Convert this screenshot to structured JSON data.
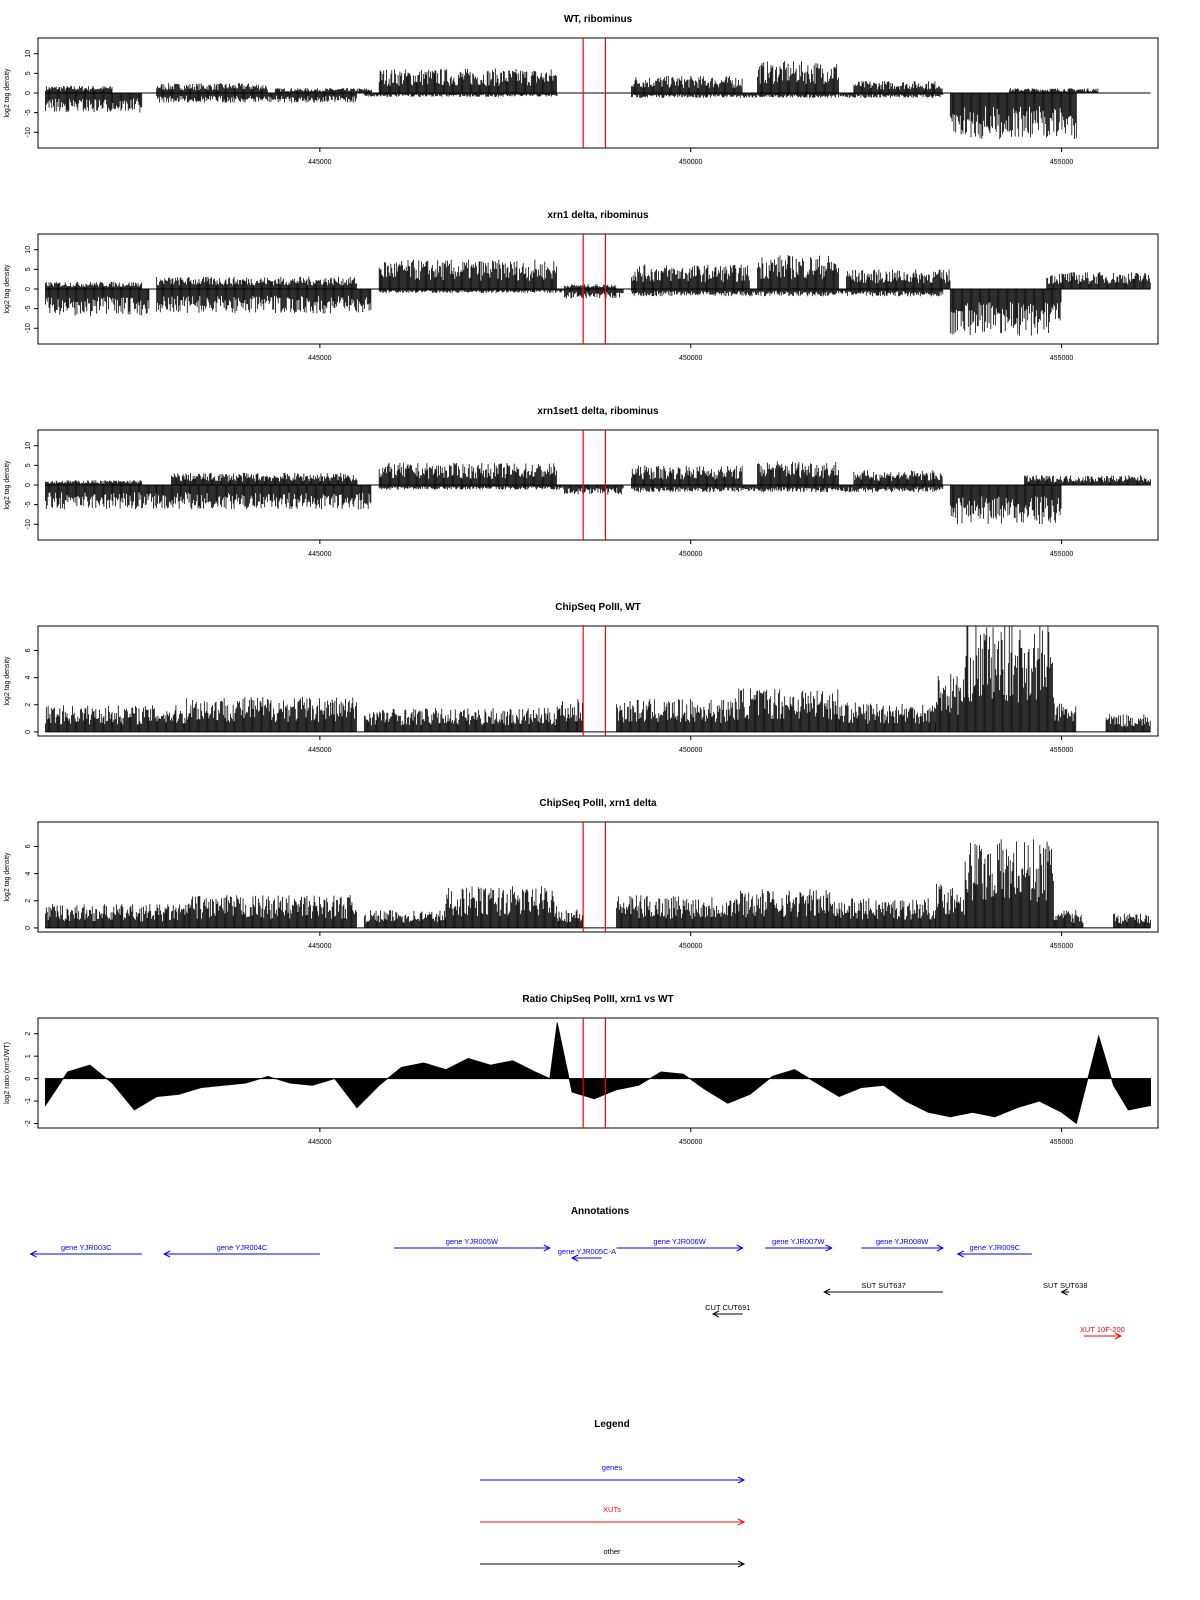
{
  "chart_data": [
    {
      "type": "bar",
      "title": "WT, ribominus",
      "ylabel": "log2 tag density",
      "xlim": [
        441200,
        456300
      ],
      "ylim": [
        -14,
        14
      ],
      "yticks": [
        "-10",
        "-5",
        "0",
        "5",
        "10"
      ],
      "ytick_values": [
        -10,
        -5,
        0,
        5,
        10
      ],
      "xticks": [
        "445000",
        "450000",
        "455000"
      ],
      "xtick_values": [
        445000,
        450000,
        455000
      ],
      "marker_lines": [
        448550,
        448850
      ],
      "plus_strand_segments": [
        {
          "start": 441300,
          "end": 442200,
          "level": 1.5
        },
        {
          "start": 442800,
          "end": 444300,
          "level": 2
        },
        {
          "start": 444400,
          "end": 445700,
          "level": 1
        },
        {
          "start": 445800,
          "end": 448200,
          "level": 5
        },
        {
          "start": 449200,
          "end": 450700,
          "level": 3.5
        },
        {
          "start": 450900,
          "end": 452000,
          "level": 6.5
        },
        {
          "start": 452200,
          "end": 453400,
          "level": 2.5
        },
        {
          "start": 454300,
          "end": 455500,
          "level": 1
        }
      ],
      "minus_strand_segments": [
        {
          "start": 441300,
          "end": 442600,
          "level": -4
        },
        {
          "start": 442800,
          "end": 445500,
          "level": -2
        },
        {
          "start": 445600,
          "end": 448200,
          "level": -0.8
        },
        {
          "start": 449200,
          "end": 453400,
          "level": -1
        },
        {
          "start": 453500,
          "end": 455200,
          "level": -9.5
        }
      ]
    },
    {
      "type": "bar",
      "title": "xrn1 delta, ribominus",
      "ylabel": "log2 tag density",
      "xlim": [
        441200,
        456300
      ],
      "ylim": [
        -14,
        14
      ],
      "yticks": [
        "-10",
        "-5",
        "0",
        "5",
        "10"
      ],
      "ytick_values": [
        -10,
        -5,
        0,
        5,
        10
      ],
      "xticks": [
        "445000",
        "450000",
        "455000"
      ],
      "xtick_values": [
        445000,
        450000,
        455000
      ],
      "marker_lines": [
        448550,
        448850
      ],
      "plus_strand_segments": [
        {
          "start": 441300,
          "end": 442600,
          "level": 1.5
        },
        {
          "start": 442800,
          "end": 445500,
          "level": 2.5
        },
        {
          "start": 445800,
          "end": 448200,
          "level": 6
        },
        {
          "start": 448300,
          "end": 449000,
          "level": 1
        },
        {
          "start": 449200,
          "end": 450800,
          "level": 5
        },
        {
          "start": 450900,
          "end": 452000,
          "level": 7
        },
        {
          "start": 452100,
          "end": 453500,
          "level": 4
        },
        {
          "start": 454800,
          "end": 456200,
          "level": 3.5
        }
      ],
      "minus_strand_segments": [
        {
          "start": 441300,
          "end": 442700,
          "level": -5.5
        },
        {
          "start": 442800,
          "end": 445700,
          "level": -5
        },
        {
          "start": 445800,
          "end": 448300,
          "level": -0.8
        },
        {
          "start": 448300,
          "end": 449100,
          "level": -2
        },
        {
          "start": 449200,
          "end": 453400,
          "level": -1.5
        },
        {
          "start": 453500,
          "end": 455000,
          "level": -9.5
        }
      ]
    },
    {
      "type": "bar",
      "title": "xrn1set1 delta, ribominus",
      "ylabel": "log2 tag density",
      "xlim": [
        441200,
        456300
      ],
      "ylim": [
        -14,
        14
      ],
      "yticks": [
        "-10",
        "-5",
        "0",
        "5",
        "10"
      ],
      "ytick_values": [
        -10,
        -5,
        0,
        5,
        10
      ],
      "xticks": [
        "445000",
        "450000",
        "455000"
      ],
      "xtick_values": [
        445000,
        450000,
        455000
      ],
      "marker_lines": [
        448550,
        448850
      ],
      "plus_strand_segments": [
        {
          "start": 441300,
          "end": 442600,
          "level": 1
        },
        {
          "start": 443000,
          "end": 445500,
          "level": 2.5
        },
        {
          "start": 445800,
          "end": 448200,
          "level": 4.5
        },
        {
          "start": 449200,
          "end": 450700,
          "level": 4
        },
        {
          "start": 450900,
          "end": 452000,
          "level": 5
        },
        {
          "start": 452200,
          "end": 453400,
          "level": 3
        },
        {
          "start": 454500,
          "end": 456200,
          "level": 2
        }
      ],
      "minus_strand_segments": [
        {
          "start": 441300,
          "end": 442800,
          "level": -5
        },
        {
          "start": 442800,
          "end": 445700,
          "level": -5
        },
        {
          "start": 445800,
          "end": 448300,
          "level": -1
        },
        {
          "start": 448300,
          "end": 449100,
          "level": -2
        },
        {
          "start": 449200,
          "end": 453400,
          "level": -1.5
        },
        {
          "start": 453500,
          "end": 455000,
          "level": -8
        }
      ]
    },
    {
      "type": "bar",
      "title": "ChipSeq PolII, WT",
      "ylabel": "log2 tag density",
      "xlim": [
        441200,
        456300
      ],
      "ylim": [
        -0.3,
        7.8
      ],
      "yticks": [
        "0",
        "2",
        "4",
        "6"
      ],
      "ytick_values": [
        0,
        2,
        4,
        6
      ],
      "xticks": [
        "445000",
        "450000",
        "455000"
      ],
      "xtick_values": [
        445000,
        450000,
        455000
      ],
      "marker_lines": [
        448550,
        448850
      ],
      "segments": [
        {
          "start": 441300,
          "end": 443200,
          "level": 1.8
        },
        {
          "start": 443200,
          "end": 445500,
          "level": 2.4
        },
        {
          "start": 445600,
          "end": 448200,
          "level": 1.6
        },
        {
          "start": 448200,
          "end": 448550,
          "level": 2.2
        },
        {
          "start": 449000,
          "end": 450600,
          "level": 2.2
        },
        {
          "start": 450600,
          "end": 452000,
          "level": 3
        },
        {
          "start": 452000,
          "end": 453300,
          "level": 2
        },
        {
          "start": 453300,
          "end": 453700,
          "level": 4
        },
        {
          "start": 453700,
          "end": 454900,
          "level": 7.2
        },
        {
          "start": 454900,
          "end": 455200,
          "level": 2
        },
        {
          "start": 455600,
          "end": 456200,
          "level": 1.2
        }
      ]
    },
    {
      "type": "bar",
      "title": "ChipSeq PolII, xrn1 delta",
      "ylabel": "log2 tag density",
      "xlim": [
        441200,
        456300
      ],
      "ylim": [
        -0.3,
        7.8
      ],
      "yticks": [
        "0",
        "2",
        "4",
        "6"
      ],
      "ytick_values": [
        0,
        2,
        4,
        6
      ],
      "xticks": [
        "445000",
        "450000",
        "455000"
      ],
      "xtick_values": [
        445000,
        450000,
        455000
      ],
      "marker_lines": [
        448550,
        448850
      ],
      "segments": [
        {
          "start": 441300,
          "end": 443200,
          "level": 1.6
        },
        {
          "start": 443200,
          "end": 445500,
          "level": 2.2
        },
        {
          "start": 445600,
          "end": 446700,
          "level": 1.2
        },
        {
          "start": 446700,
          "end": 448200,
          "level": 2.8
        },
        {
          "start": 448200,
          "end": 448550,
          "level": 1.3
        },
        {
          "start": 449000,
          "end": 450600,
          "level": 2.2
        },
        {
          "start": 450600,
          "end": 452000,
          "level": 2.6
        },
        {
          "start": 452000,
          "end": 453300,
          "level": 2
        },
        {
          "start": 453300,
          "end": 453700,
          "level": 3
        },
        {
          "start": 453700,
          "end": 454900,
          "level": 6
        },
        {
          "start": 454900,
          "end": 455300,
          "level": 1.2
        },
        {
          "start": 455700,
          "end": 456200,
          "level": 1
        }
      ]
    },
    {
      "type": "area",
      "title": "Ratio ChipSeq PolII, xrn1 vs WT",
      "ylabel": "log2 ratio (xrn1/WT)",
      "xlim": [
        441200,
        456300
      ],
      "ylim": [
        -2.2,
        2.7
      ],
      "yticks": [
        "-2",
        "-1",
        "0",
        "1",
        "2"
      ],
      "ytick_values": [
        -2,
        -1,
        0,
        1,
        2
      ],
      "xticks": [
        "445000",
        "450000",
        "455000"
      ],
      "xtick_values": [
        445000,
        450000,
        455000
      ],
      "marker_lines": [
        448550,
        448850
      ],
      "x": [
        441300,
        441600,
        441900,
        442200,
        442500,
        442800,
        443100,
        443400,
        443700,
        444000,
        444300,
        444600,
        444900,
        445200,
        445500,
        445800,
        446100,
        446400,
        446700,
        447000,
        447300,
        447600,
        447900,
        448100,
        448200,
        448400,
        448700,
        449000,
        449300,
        449600,
        449900,
        450200,
        450500,
        450800,
        451100,
        451400,
        451700,
        452000,
        452300,
        452600,
        452900,
        453200,
        453500,
        453800,
        454100,
        454400,
        454700,
        455000,
        455200,
        455500,
        455700,
        455900,
        456200
      ],
      "y": [
        -1.2,
        0.3,
        0.6,
        -0.2,
        -1.4,
        -0.8,
        -0.7,
        -0.4,
        -0.3,
        -0.2,
        0.1,
        -0.2,
        -0.3,
        0.0,
        -1.3,
        -0.3,
        0.5,
        0.7,
        0.4,
        0.9,
        0.6,
        0.8,
        0.3,
        0.0,
        2.5,
        -0.6,
        -0.9,
        -0.5,
        -0.3,
        0.3,
        0.2,
        -0.5,
        -1.1,
        -0.7,
        0.1,
        0.4,
        -0.2,
        -0.8,
        -0.4,
        -0.3,
        -1.0,
        -1.5,
        -1.7,
        -1.5,
        -1.7,
        -1.3,
        -1.0,
        -1.5,
        -2.0,
        1.9,
        -0.3,
        -1.4,
        -1.2
      ]
    }
  ],
  "annotations": {
    "title": "Annotations",
    "items": [
      {
        "label": "gene YJR003C",
        "start": 441100,
        "end": 442600,
        "dir": "left",
        "type": "genes"
      },
      {
        "label": "gene YJR004C",
        "start": 442900,
        "end": 445000,
        "dir": "left",
        "type": "genes"
      },
      {
        "label": "gene YJR005W",
        "start": 446000,
        "end": 448100,
        "dir": "right",
        "type": "genes"
      },
      {
        "label": "gene YJR005C-A",
        "start": 448400,
        "end": 448800,
        "dir": "left",
        "type": "genes"
      },
      {
        "label": "gene YJR006W",
        "start": 449000,
        "end": 450700,
        "dir": "right",
        "type": "genes"
      },
      {
        "label": "gene YJR007W",
        "start": 451000,
        "end": 451900,
        "dir": "right",
        "type": "genes"
      },
      {
        "label": "gene YJR008W",
        "start": 452300,
        "end": 453400,
        "dir": "right",
        "type": "genes"
      },
      {
        "label": "gene YJR009C",
        "start": 453600,
        "end": 454600,
        "dir": "left",
        "type": "genes"
      },
      {
        "label": "SUT SUT637",
        "start": 451800,
        "end": 453400,
        "dir": "left",
        "type": "other"
      },
      {
        "label": "SUT SUT638",
        "start": 455000,
        "end": 455100,
        "dir": "left",
        "type": "other"
      },
      {
        "label": "CUT CUT691",
        "start": 450300,
        "end": 450700,
        "dir": "left",
        "type": "other"
      },
      {
        "label": "XUT 10F-200",
        "start": 455300,
        "end": 455800,
        "dir": "right",
        "type": "XUTs"
      }
    ]
  },
  "legend": {
    "title": "Legend",
    "items": [
      {
        "label": "genes",
        "color": "#0000ff"
      },
      {
        "label": "XUTs",
        "color": "#ff0000"
      },
      {
        "label": "other",
        "color": "#000000"
      }
    ]
  },
  "colors": {
    "signal": "#000000",
    "marker": "#ff0000",
    "genes": "#0000ff",
    "XUTs": "#ff0000",
    "other": "#000000"
  }
}
